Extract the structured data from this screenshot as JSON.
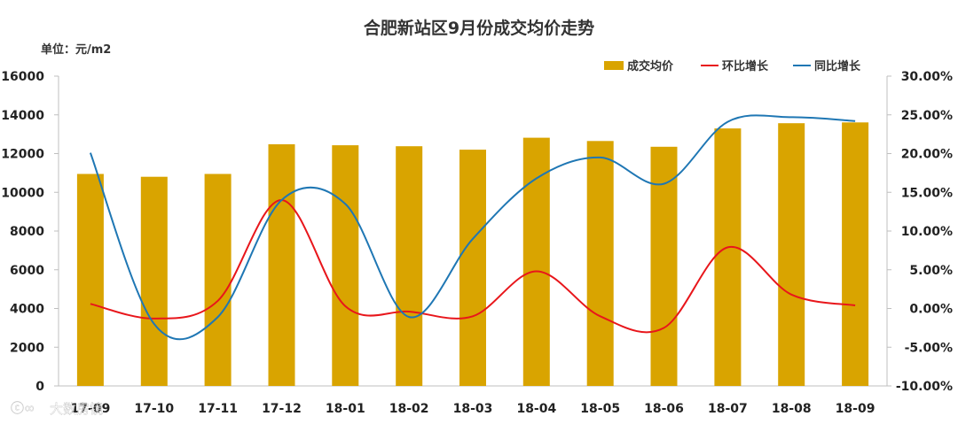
{
  "chart_data": {
    "type": "bar",
    "title": "合肥新站区9月份成交均价走势",
    "unit_label": "单位：元/m2",
    "categories": [
      "17-09",
      "17-10",
      "17-11",
      "17-12",
      "18-01",
      "18-02",
      "18-03",
      "18-04",
      "18-05",
      "18-06",
      "18-07",
      "18-08",
      "18-09"
    ],
    "series": [
      {
        "name": "成交均价",
        "kind": "bar",
        "axis": "left",
        "color": "#D9A400",
        "values": [
          10950,
          10800,
          10950,
          12480,
          12430,
          12380,
          12200,
          12820,
          12650,
          12350,
          13300,
          13570,
          13610
        ]
      },
      {
        "name": "环比增长",
        "kind": "line",
        "axis": "right",
        "color": "#E8161B",
        "values": [
          0.6,
          -1.3,
          1.0,
          14.0,
          0.3,
          -0.4,
          -1.0,
          4.8,
          -1.0,
          -2.5,
          7.9,
          1.8,
          0.4
        ]
      },
      {
        "name": "同比增长",
        "kind": "line",
        "axis": "right",
        "color": "#1F77B4",
        "values": [
          20.1,
          -2.0,
          -1.1,
          14.0,
          13.5,
          -1.1,
          9.0,
          16.8,
          19.5,
          16.1,
          24.1,
          24.7,
          24.2
        ]
      }
    ],
    "y_left": {
      "min": 0,
      "max": 16000,
      "ticks": [
        "16000",
        "14000",
        "12000",
        "10000",
        "8000",
        "6000",
        "4000",
        "2000",
        "0"
      ]
    },
    "y_right": {
      "min": -10,
      "max": 30,
      "ticks": [
        "30.00%",
        "25.00%",
        "20.00%",
        "15.00%",
        "10.00%",
        "5.00%",
        "0.00%",
        "-5.00%",
        "-10.00%"
      ]
    },
    "legend_position": "top-right",
    "grid": false
  },
  "watermark": "大数房镜"
}
